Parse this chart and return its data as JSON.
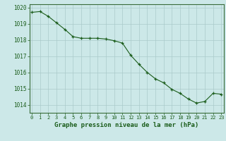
{
  "x": [
    0,
    1,
    2,
    3,
    4,
    5,
    6,
    7,
    8,
    9,
    10,
    11,
    12,
    13,
    14,
    15,
    16,
    17,
    18,
    19,
    20,
    21,
    22,
    23
  ],
  "y": [
    1019.7,
    1019.75,
    1019.45,
    1019.05,
    1018.65,
    1018.2,
    1018.1,
    1018.1,
    1018.1,
    1018.05,
    1017.95,
    1017.8,
    1017.05,
    1016.5,
    1016.0,
    1015.6,
    1015.35,
    1014.95,
    1014.7,
    1014.35,
    1014.1,
    1014.2,
    1014.7,
    1014.65
  ],
  "ylim": [
    1013.5,
    1020.2
  ],
  "yticks": [
    1014,
    1015,
    1016,
    1017,
    1018,
    1019,
    1020
  ],
  "xticks": [
    0,
    1,
    2,
    3,
    4,
    5,
    6,
    7,
    8,
    9,
    10,
    11,
    12,
    13,
    14,
    15,
    16,
    17,
    18,
    19,
    20,
    21,
    22,
    23
  ],
  "line_color": "#1a5c1a",
  "marker": "+",
  "marker_color": "#1a5c1a",
  "bg_color": "#cce8e8",
  "grid_color": "#aacaca",
  "xlabel": "Graphe pression niveau de la mer (hPa)",
  "xlabel_color": "#1a5c1a",
  "tick_label_color": "#1a5c1a",
  "figsize": [
    3.2,
    2.0
  ],
  "dpi": 100
}
